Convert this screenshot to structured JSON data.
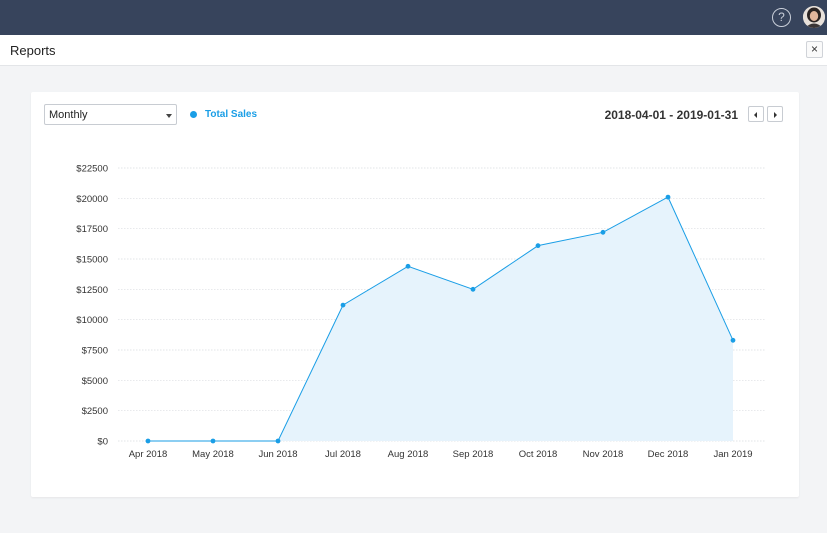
{
  "header": {
    "help_icon": "help-icon",
    "avatar_icon": "user-avatar"
  },
  "page": {
    "title": "Reports",
    "close_label": "×"
  },
  "controls": {
    "period_select": {
      "value": "Monthly",
      "options": [
        "Monthly"
      ]
    },
    "legend_label": "Total Sales",
    "date_range": "2018-04-01 - 2019-01-31"
  },
  "colors": {
    "topbar": "#37445c",
    "series": "#1a9ee6",
    "area_fill": "#e6f3fc"
  },
  "chart_data": {
    "type": "area",
    "title": "",
    "xlabel": "",
    "ylabel": "",
    "categories": [
      "Apr 2018",
      "May 2018",
      "Jun 2018",
      "Jul 2018",
      "Aug 2018",
      "Sep 2018",
      "Oct 2018",
      "Nov 2018",
      "Dec 2018",
      "Jan 2019"
    ],
    "series": [
      {
        "name": "Total Sales",
        "values": [
          0,
          0,
          0,
          11200,
          14400,
          12500,
          16100,
          17200,
          20100,
          8300
        ]
      }
    ],
    "ylim": [
      0,
      22500
    ],
    "yticks": [
      0,
      2500,
      5000,
      7500,
      10000,
      12500,
      15000,
      17500,
      20000,
      22500
    ],
    "ytick_labels": [
      "$0",
      "$2500",
      "$5000",
      "$7500",
      "$10000",
      "$12500",
      "$15000",
      "$17500",
      "$20000",
      "$22500"
    ],
    "grid": true,
    "legend_position": "top-left"
  }
}
